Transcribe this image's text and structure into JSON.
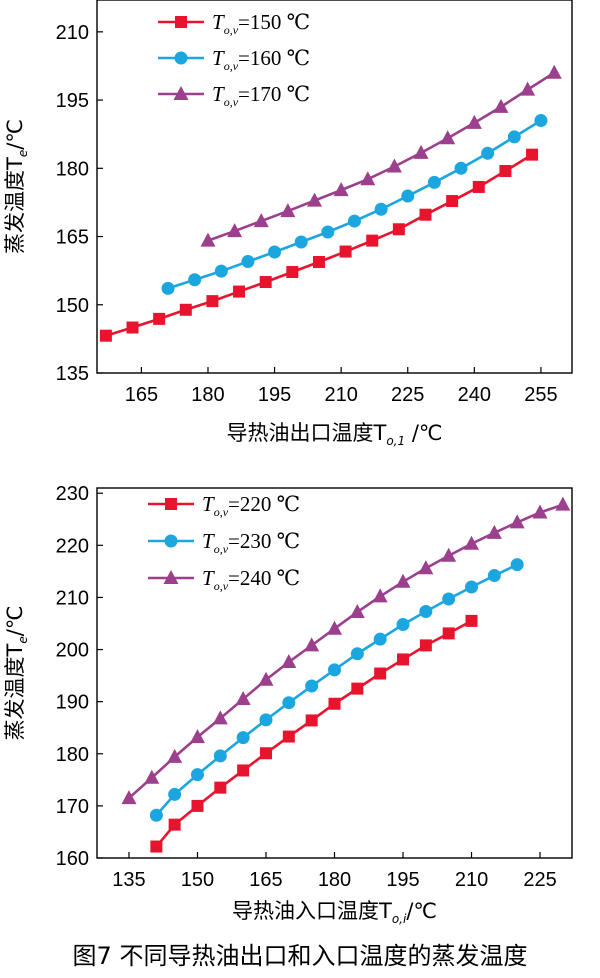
{
  "caption": "图7  不同导热油出口和入口温度的蒸发温度",
  "chart_data": [
    {
      "type": "line",
      "xlabel": "导热油出口温度T",
      "xlabel_sub": "o,1",
      "xlabel_unit": " /℃",
      "ylabel": "蒸发温度T",
      "ylabel_sub": "e",
      "ylabel_unit": "/℃",
      "xlim": [
        155,
        262
      ],
      "ylim": [
        135,
        217
      ],
      "xticks": [
        165,
        180,
        195,
        210,
        225,
        240,
        255
      ],
      "yticks": [
        135,
        150,
        165,
        180,
        195,
        210
      ],
      "series": [
        {
          "name": "T_o,v=150 ℃",
          "legend_main": "T",
          "legend_sub": "o,v",
          "legend_value": "=150 ℃",
          "color": "#e8132c",
          "marker": "square",
          "x": [
            157,
            163,
            169,
            175,
            181,
            187,
            193,
            199,
            205,
            211,
            217,
            223,
            229,
            235,
            241,
            247,
            253
          ],
          "y": [
            143.2,
            145.0,
            146.9,
            148.9,
            150.8,
            152.9,
            155.0,
            157.2,
            159.4,
            161.7,
            164.1,
            166.6,
            169.8,
            172.8,
            175.9,
            179.4,
            183.0
          ]
        },
        {
          "name": "T_o,v=160 ℃",
          "legend_main": "T",
          "legend_sub": "o,v",
          "legend_value": "=160 ℃",
          "color": "#1ba6e0",
          "marker": "circle",
          "x": [
            171,
            177,
            183,
            189,
            195,
            201,
            207,
            213,
            219,
            225,
            231,
            237,
            243,
            249,
            255
          ],
          "y": [
            153.6,
            155.5,
            157.4,
            159.5,
            161.6,
            163.8,
            166.0,
            168.4,
            171.0,
            173.9,
            176.9,
            180.0,
            183.3,
            186.9,
            190.5
          ]
        },
        {
          "name": "T_o,v=170 ℃",
          "legend_main": "T",
          "legend_sub": "o,v",
          "legend_value": "=170 ℃",
          "color": "#9c3f8c",
          "marker": "triangle",
          "x": [
            180,
            186,
            192,
            198,
            204,
            210,
            216,
            222,
            228,
            234,
            240,
            246,
            252,
            258
          ],
          "y": [
            164.1,
            166.2,
            168.4,
            170.6,
            172.9,
            175.2,
            177.6,
            180.4,
            183.4,
            186.6,
            190.0,
            193.5,
            197.3,
            201.0
          ]
        }
      ]
    },
    {
      "type": "line",
      "xlabel": "导热油入口温度T",
      "xlabel_sub": "o,i",
      "xlabel_unit": "/℃",
      "ylabel": "蒸发温度T",
      "ylabel_sub": "e",
      "ylabel_unit": "/℃",
      "xlim": [
        128,
        232
      ],
      "ylim": [
        160,
        231
      ],
      "xticks": [
        135,
        150,
        165,
        180,
        195,
        210,
        225
      ],
      "yticks": [
        160,
        170,
        180,
        190,
        200,
        210,
        220,
        230
      ],
      "series": [
        {
          "name": "T_o,v=220 ℃",
          "legend_main": "T",
          "legend_sub": "o,v",
          "legend_value": "=220 ℃",
          "color": "#e8132c",
          "marker": "square",
          "x": [
            141,
            145,
            150,
            155,
            160,
            165,
            170,
            175,
            180,
            185,
            190,
            195,
            200,
            205,
            210
          ],
          "y": [
            162.2,
            166.4,
            170.0,
            173.5,
            176.8,
            180.1,
            183.3,
            186.4,
            189.6,
            192.5,
            195.4,
            198.1,
            200.8,
            203.1,
            205.5
          ]
        },
        {
          "name": "T_o,v=230 ℃",
          "legend_main": "T",
          "legend_sub": "o,v",
          "legend_value": "=230 ℃",
          "color": "#1ba6e0",
          "marker": "circle",
          "x": [
            141,
            145,
            150,
            155,
            160,
            165,
            170,
            175,
            180,
            185,
            190,
            195,
            200,
            205,
            210,
            215,
            220
          ],
          "y": [
            168.2,
            172.2,
            176.0,
            179.6,
            183.1,
            186.5,
            189.8,
            193.0,
            196.1,
            199.2,
            202.0,
            204.8,
            207.3,
            209.7,
            212.0,
            214.2,
            216.3
          ]
        },
        {
          "name": "T_o,v=240 ℃",
          "legend_main": "T",
          "legend_sub": "o,v",
          "legend_value": "=240 ℃",
          "color": "#9c3f8c",
          "marker": "triangle",
          "x": [
            135,
            140,
            145,
            150,
            155,
            160,
            165,
            170,
            175,
            180,
            185,
            190,
            195,
            200,
            205,
            210,
            215,
            220,
            225,
            230
          ],
          "y": [
            171.5,
            175.4,
            179.4,
            183.2,
            186.8,
            190.5,
            194.2,
            197.6,
            200.8,
            204.0,
            207.2,
            210.2,
            213.0,
            215.6,
            218.0,
            220.3,
            222.4,
            224.4,
            226.3,
            227.8
          ]
        }
      ]
    }
  ]
}
